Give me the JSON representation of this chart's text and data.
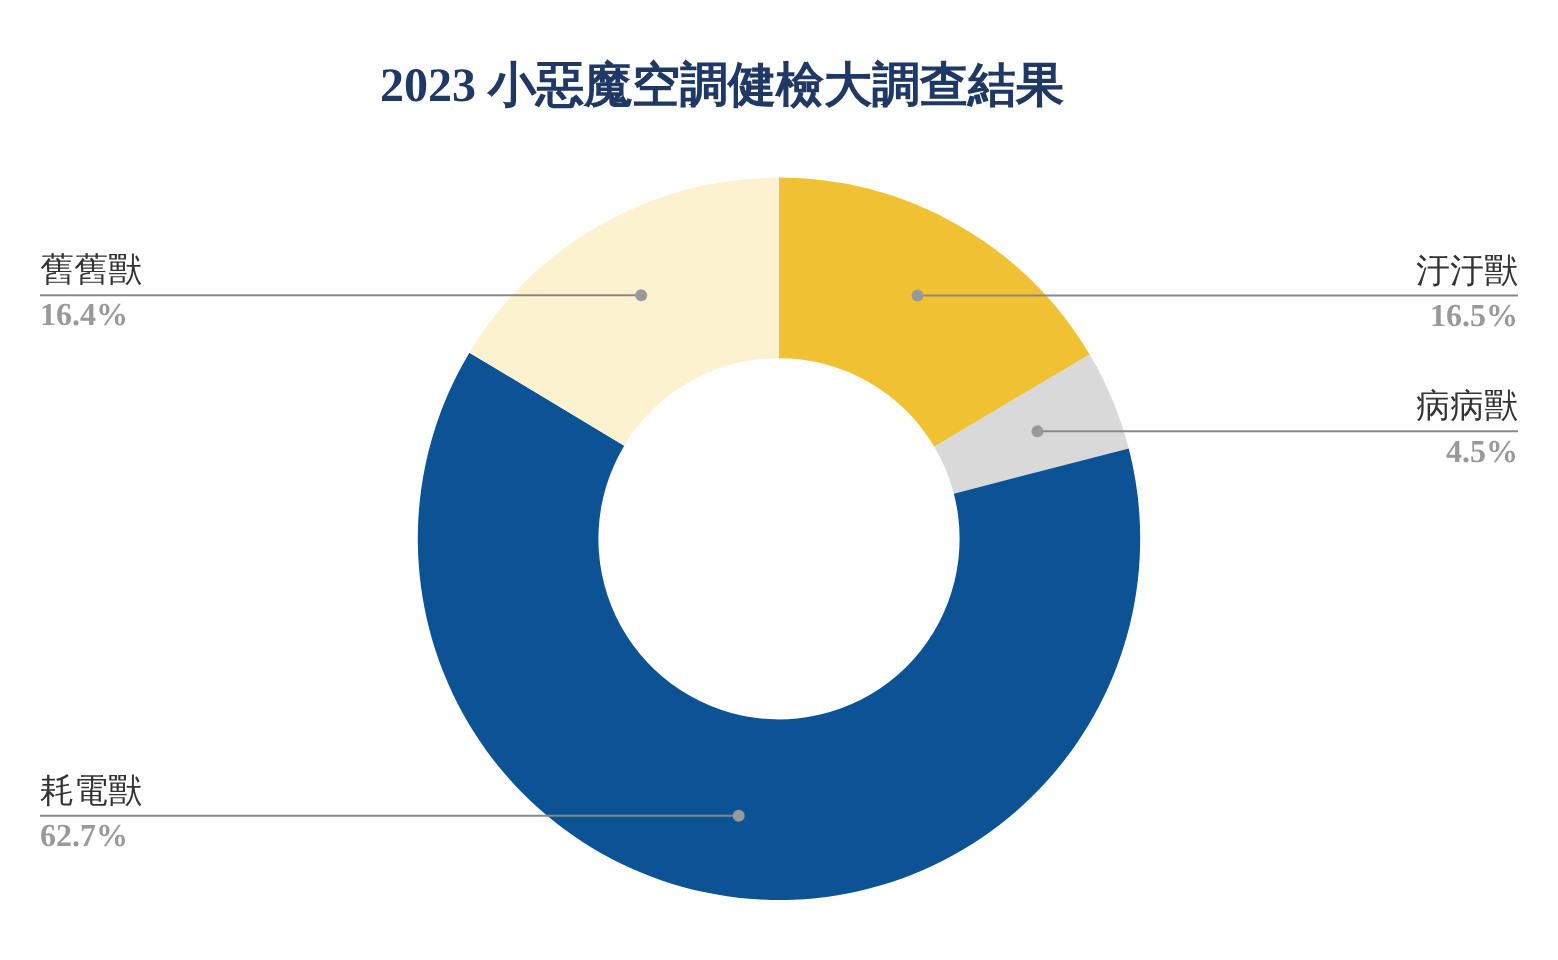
{
  "chart_data": {
    "type": "donut",
    "title": "2023 小惡魔空調健檢大調查結果",
    "categories": [
      "汙汙獸",
      "病病獸",
      "耗電獸",
      "舊舊獸"
    ],
    "values": [
      16.5,
      4.5,
      62.7,
      16.4
    ],
    "colors": [
      "#f0c132",
      "#d9d9d9",
      "#0b5394",
      "#fdf2d0"
    ],
    "value_labels": [
      "16.5%",
      "4.5%",
      "62.7%",
      "16.4%"
    ],
    "legend": false
  }
}
